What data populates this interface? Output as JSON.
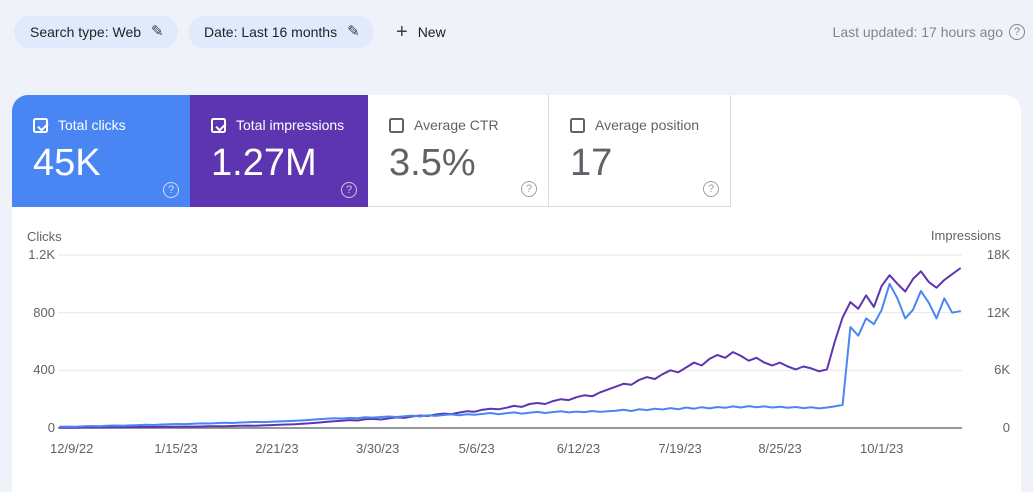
{
  "header": {
    "chips": [
      {
        "label": "Search type: Web"
      },
      {
        "label": "Date: Last 16 months"
      }
    ],
    "new_button": "New",
    "last_updated": "Last updated: 17 hours ago"
  },
  "cards": [
    {
      "label": "Total clicks",
      "value": "45K",
      "checked": true,
      "bg": "#4a86f3",
      "text": "#ffffff"
    },
    {
      "label": "Total impressions",
      "value": "1.27M",
      "checked": true,
      "bg": "#5e35b1",
      "text": "#ffffff"
    },
    {
      "label": "Average CTR",
      "value": "3.5%",
      "checked": false,
      "bg": "#ffffff",
      "text": "#5f6368"
    },
    {
      "label": "Average position",
      "value": "17",
      "checked": false,
      "bg": "#ffffff",
      "text": "#5f6368"
    }
  ],
  "chart_data": {
    "type": "line",
    "grid": true,
    "left_axis": {
      "title": "Clicks",
      "ticks": [
        "1.2K",
        "800",
        "400",
        "0"
      ],
      "max": 1200
    },
    "right_axis": {
      "title": "Impressions",
      "ticks": [
        "18K",
        "12K",
        "6K",
        "0"
      ],
      "max": 18000
    },
    "x_labels": [
      {
        "label": "12/9/22",
        "f": 0.013
      },
      {
        "label": "1/15/23",
        "f": 0.129
      },
      {
        "label": "2/21/23",
        "f": 0.241
      },
      {
        "label": "3/30/23",
        "f": 0.353
      },
      {
        "label": "5/6/23",
        "f": 0.463
      },
      {
        "label": "6/12/23",
        "f": 0.576
      },
      {
        "label": "7/19/23",
        "f": 0.689
      },
      {
        "label": "8/25/23",
        "f": 0.8
      },
      {
        "label": "10/1/23",
        "f": 0.913
      }
    ],
    "series": [
      {
        "name": "Total impressions",
        "axis": "right",
        "color": "#5e35b1",
        "values": [
          30,
          40,
          35,
          50,
          60,
          55,
          70,
          80,
          75,
          90,
          100,
          110,
          105,
          120,
          130,
          140,
          150,
          145,
          160,
          175,
          190,
          185,
          210,
          230,
          250,
          240,
          270,
          300,
          330,
          360,
          400,
          450,
          500,
          560,
          630,
          700,
          760,
          820,
          780,
          900,
          950,
          880,
          1000,
          1100,
          1050,
          1200,
          1300,
          1250,
          1400,
          1500,
          1450,
          1600,
          1750,
          1700,
          1900,
          2000,
          1950,
          2100,
          2300,
          2200,
          2500,
          2600,
          2500,
          2800,
          3000,
          2900,
          3200,
          3400,
          3300,
          3700,
          4000,
          4300,
          4600,
          4500,
          5000,
          5300,
          5100,
          5600,
          6000,
          5800,
          6300,
          6800,
          6500,
          7200,
          7600,
          7300,
          7900,
          7500,
          7000,
          7300,
          6800,
          6500,
          6800,
          6400,
          6100,
          6400,
          6200,
          5900,
          6100,
          9000,
          11500,
          13100,
          12400,
          13800,
          12600,
          14800,
          15900,
          15000,
          14200,
          15500,
          16300,
          15200,
          14600,
          15400,
          16000,
          16600
        ]
      },
      {
        "name": "Total clicks",
        "axis": "left",
        "color": "#4a86f3",
        "values": [
          8,
          10,
          9,
          12,
          14,
          12,
          15,
          17,
          16,
          18,
          20,
          22,
          21,
          24,
          26,
          28,
          27,
          30,
          32,
          31,
          34,
          36,
          35,
          38,
          40,
          42,
          41,
          44,
          46,
          48,
          50,
          53,
          56,
          60,
          64,
          68,
          66,
          70,
          68,
          74,
          72,
          76,
          80,
          76,
          82,
          86,
          80,
          88,
          84,
          90,
          94,
          88,
          96,
          92,
          98,
          104,
          96,
          102,
          108,
          100,
          106,
          112,
          104,
          110,
          116,
          108,
          114,
          110,
          118,
          112,
          116,
          120,
          126,
          118,
          130,
          124,
          134,
          128,
          138,
          130,
          142,
          134,
          144,
          136,
          146,
          140,
          150,
          142,
          152,
          144,
          150,
          142,
          148,
          140,
          146,
          138,
          144,
          136,
          142,
          150,
          160,
          700,
          640,
          760,
          720,
          820,
          1000,
          900,
          760,
          820,
          950,
          870,
          760,
          900,
          800,
          810
        ]
      }
    ]
  }
}
